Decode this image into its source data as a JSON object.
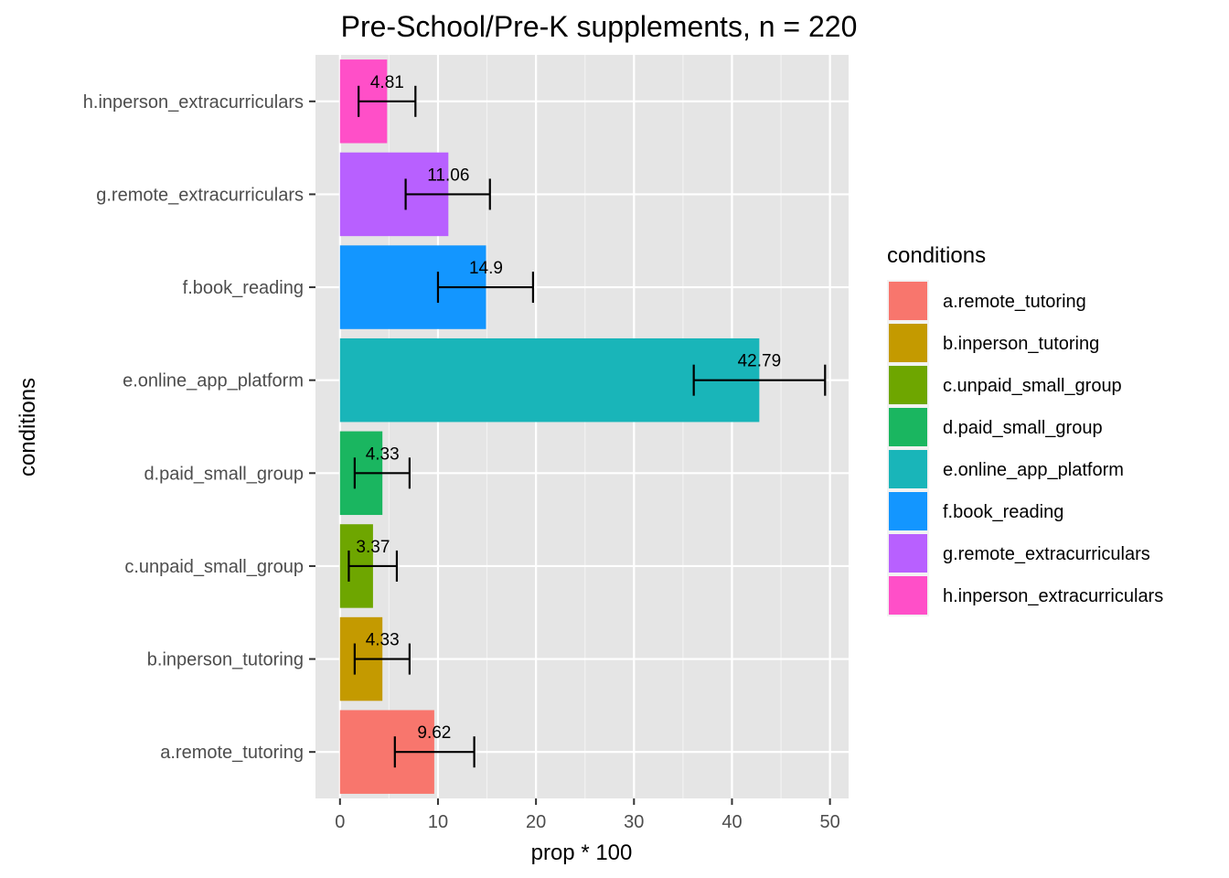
{
  "chart_data": {
    "type": "bar",
    "orientation": "horizontal",
    "title": "Pre-School/Pre-K supplements, n = 220",
    "xlabel": "prop * 100",
    "ylabel": "conditions",
    "xlim": [
      -2.5,
      51.9
    ],
    "xticks": [
      0,
      10,
      20,
      30,
      40,
      50
    ],
    "xtick_labels": [
      "0",
      "10",
      "20",
      "30",
      "40",
      "50"
    ],
    "grid": true,
    "panel_background": "#e5e5e5",
    "legend": {
      "title": "conditions",
      "position": "right"
    },
    "categories": [
      "a.remote_tutoring",
      "b.inperson_tutoring",
      "c.unpaid_small_group",
      "d.paid_small_group",
      "e.online_app_platform",
      "f.book_reading",
      "g.remote_extracurriculars",
      "h.inperson_extracurriculars"
    ],
    "values": [
      9.62,
      4.33,
      3.37,
      4.33,
      42.79,
      14.9,
      11.06,
      4.81
    ],
    "data_labels": [
      "9.62",
      "4.33",
      "3.37",
      "4.33",
      "42.79",
      "14.9",
      "11.06",
      "4.81"
    ],
    "error_low": [
      5.6,
      1.5,
      0.9,
      1.5,
      36.1,
      10.0,
      6.7,
      1.9
    ],
    "error_high": [
      13.7,
      7.1,
      5.8,
      7.1,
      49.5,
      19.7,
      15.3,
      7.7
    ],
    "colors": [
      "#f8766d",
      "#c49a00",
      "#6ea600",
      "#1ab660",
      "#19b5b9",
      "#1396ff",
      "#b860ff",
      "#ff4fc8"
    ]
  }
}
